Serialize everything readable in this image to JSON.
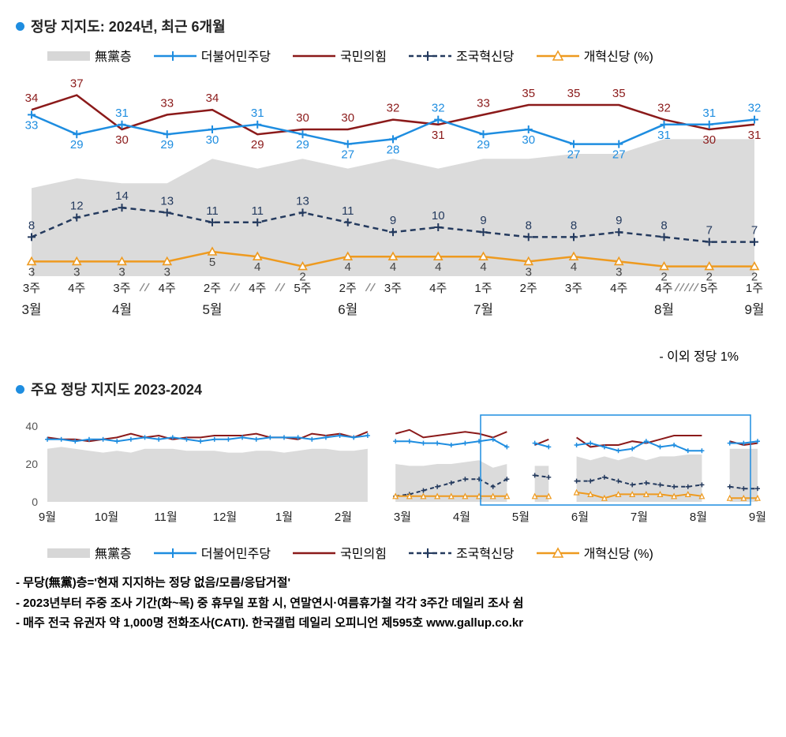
{
  "chart1": {
    "title": "정당 지지도: 2024년, 최근 6개월",
    "legend": [
      {
        "label": "無黨층",
        "color": "#d7d7d7",
        "type": "area"
      },
      {
        "label": "더불어민주당",
        "color": "#1e8de0",
        "type": "line-marker"
      },
      {
        "label": "국민의힘",
        "color": "#8b1a1a",
        "type": "line"
      },
      {
        "label": "조국혁신당",
        "color": "#243a5e",
        "type": "dash-cross"
      },
      {
        "label": "개혁신당 (%)",
        "color": "#ee9a1f",
        "type": "line-tri"
      }
    ],
    "weeks": [
      "3주",
      "4주",
      "3주",
      "4주",
      "2주",
      "4주",
      "5주",
      "2주",
      "3주",
      "4주",
      "1주",
      "2주",
      "3주",
      "4주",
      "4주",
      "5주",
      "1주"
    ],
    "months": [
      "3월",
      "",
      "4월",
      "",
      "5월",
      "",
      "",
      "6월",
      "",
      "",
      "7월",
      "",
      "",
      "",
      "8월",
      "",
      "9월"
    ],
    "noparty": [
      18,
      20,
      19,
      19,
      24,
      22,
      24,
      22,
      24,
      22,
      24,
      24,
      25,
      25,
      28,
      28,
      28
    ],
    "dpk": [
      33,
      29,
      31,
      29,
      30,
      31,
      29,
      27,
      28,
      32,
      29,
      30,
      27,
      27,
      31,
      31,
      32
    ],
    "ppp": [
      34,
      37,
      30,
      33,
      34,
      29,
      30,
      30,
      32,
      31,
      33,
      35,
      35,
      35,
      32,
      30,
      31
    ],
    "chk": [
      8,
      12,
      14,
      13,
      11,
      11,
      13,
      11,
      9,
      10,
      9,
      8,
      8,
      9,
      8,
      7,
      7
    ],
    "reform": [
      3,
      3,
      3,
      3,
      5,
      4,
      2,
      4,
      4,
      4,
      4,
      3,
      4,
      3,
      2,
      2,
      2
    ],
    "gap_after": [
      0,
      0,
      1,
      0,
      1,
      1,
      0,
      1,
      0,
      0,
      0,
      0,
      0,
      0,
      2,
      0,
      0
    ],
    "ylim": [
      0,
      40
    ],
    "subnote": "- 이외 정당 1%",
    "bg": "#ffffff",
    "text_color": "#222"
  },
  "chart2": {
    "title": "주요 정당 지지도 2023-2024",
    "yticks": [
      0,
      20,
      40
    ],
    "months": [
      "9월",
      "10월",
      "11월",
      "12월",
      "1월",
      "2월",
      "3월",
      "4월",
      "5월",
      "6월",
      "7월",
      "8월",
      "9월"
    ],
    "box_start": 0.61,
    "box_end": 0.99,
    "noparty": [
      28,
      29,
      28,
      27,
      26,
      27,
      26,
      28,
      28,
      28,
      27,
      27,
      27,
      26,
      26,
      27,
      27,
      26,
      27,
      28,
      28,
      27,
      27,
      28,
      null,
      20,
      19,
      19,
      20,
      20,
      21,
      22,
      18,
      20,
      null,
      19,
      19,
      null,
      24,
      22,
      24,
      22,
      24,
      22,
      24,
      24,
      25,
      25,
      null,
      28,
      28,
      28
    ],
    "dpk": [
      33,
      33,
      32,
      33,
      33,
      32,
      33,
      34,
      33,
      34,
      33,
      32,
      33,
      33,
      34,
      33,
      34,
      34,
      34,
      33,
      34,
      35,
      34,
      35,
      null,
      32,
      32,
      31,
      31,
      30,
      31,
      32,
      33,
      29,
      null,
      31,
      29,
      null,
      30,
      31,
      29,
      27,
      28,
      32,
      29,
      30,
      27,
      27,
      null,
      31,
      31,
      32
    ],
    "ppp": [
      34,
      33,
      33,
      32,
      33,
      34,
      36,
      34,
      35,
      33,
      34,
      34,
      35,
      35,
      35,
      36,
      34,
      34,
      33,
      36,
      35,
      36,
      34,
      37,
      null,
      36,
      38,
      34,
      35,
      36,
      37,
      36,
      34,
      37,
      null,
      30,
      33,
      null,
      34,
      29,
      30,
      30,
      32,
      31,
      33,
      35,
      35,
      35,
      null,
      32,
      30,
      31
    ],
    "chk": [
      null,
      null,
      null,
      null,
      null,
      null,
      null,
      null,
      null,
      null,
      null,
      null,
      null,
      null,
      null,
      null,
      null,
      null,
      null,
      null,
      null,
      null,
      null,
      null,
      null,
      3,
      4,
      6,
      8,
      10,
      12,
      12,
      8,
      12,
      null,
      14,
      13,
      null,
      11,
      11,
      13,
      11,
      9,
      10,
      9,
      8,
      8,
      9,
      null,
      8,
      7,
      7
    ],
    "reform": [
      null,
      null,
      null,
      null,
      null,
      null,
      null,
      null,
      null,
      null,
      null,
      null,
      null,
      null,
      null,
      null,
      null,
      null,
      null,
      null,
      null,
      null,
      null,
      null,
      null,
      3,
      3,
      3,
      3,
      3,
      3,
      3,
      3,
      3,
      null,
      3,
      3,
      null,
      5,
      4,
      2,
      4,
      4,
      4,
      4,
      3,
      4,
      3,
      null,
      2,
      2,
      2
    ],
    "legend": [
      {
        "label": "無黨층",
        "color": "#d7d7d7",
        "type": "area"
      },
      {
        "label": "더불어민주당",
        "color": "#1e8de0",
        "type": "line-marker"
      },
      {
        "label": "국민의힘",
        "color": "#8b1a1a",
        "type": "line"
      },
      {
        "label": "조국혁신당",
        "color": "#243a5e",
        "type": "dash-cross"
      },
      {
        "label": "개혁신당 (%)",
        "color": "#ee9a1f",
        "type": "line-tri"
      }
    ]
  },
  "footnotes": [
    "- 무당(無黨)층='현재 지지하는 정당 없음/모름/응답거절'",
    "- 2023년부터 주중 조사 기간(화~목) 중 휴무일 포함 시, 연말연시·여름휴가철 각각 3주간 데일리 조사 쉼",
    "- 매주 전국 유권자 약 1,000명 전화조사(CATI). 한국갤럽 데일리 오피니언 제595호 www.gallup.co.kr"
  ]
}
